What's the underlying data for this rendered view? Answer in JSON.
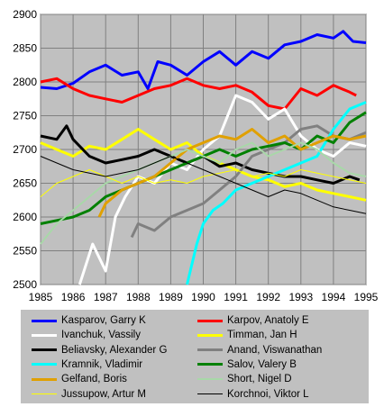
{
  "chart_data": {
    "type": "line",
    "title": "",
    "xlabel": "",
    "ylabel": "",
    "xlim": [
      1985,
      1995
    ],
    "ylim": [
      2500,
      2900
    ],
    "x_ticks": [
      "1985",
      "1986",
      "1987",
      "1988",
      "1989",
      "1990",
      "1991",
      "1992",
      "1993",
      "1994",
      "1995"
    ],
    "y_ticks": [
      "2900",
      "2850",
      "2800",
      "2750",
      "2700",
      "2650",
      "2600",
      "2550",
      "2500"
    ],
    "grid": true,
    "legend_position": "bottom",
    "series": [
      {
        "name": "Kasparov, Garry K",
        "color": "#0000ff",
        "width": 3,
        "x": [
          1985,
          1985.5,
          1986,
          1986.5,
          1987,
          1987.5,
          1988,
          1988.3,
          1988.6,
          1989,
          1989.5,
          1990,
          1990.5,
          1991,
          1991.5,
          1992,
          1992.5,
          1993,
          1993.5,
          1994,
          1994.3,
          1994.6,
          1995
        ],
        "y": [
          2792,
          2790,
          2798,
          2815,
          2825,
          2810,
          2815,
          2790,
          2830,
          2825,
          2810,
          2830,
          2845,
          2825,
          2845,
          2835,
          2855,
          2860,
          2870,
          2865,
          2875,
          2860,
          2858
        ]
      },
      {
        "name": "Karpov, Anatoly E",
        "color": "#ff0000",
        "width": 3,
        "x": [
          1985,
          1985.5,
          1986,
          1986.5,
          1987,
          1987.5,
          1988,
          1988.5,
          1989,
          1989.5,
          1990,
          1990.5,
          1991,
          1991.5,
          1992,
          1992.5,
          1993,
          1993.5,
          1994,
          1994.5,
          1994.7
        ],
        "y": [
          2800,
          2805,
          2790,
          2780,
          2775,
          2770,
          2780,
          2790,
          2795,
          2805,
          2795,
          2790,
          2795,
          2785,
          2765,
          2760,
          2790,
          2780,
          2795,
          2785,
          2780
        ]
      },
      {
        "name": "Ivanchuk, Vassily",
        "color": "#ffffff",
        "width": 3,
        "x": [
          1986.2,
          1986.6,
          1987,
          1987.3,
          1987.6,
          1988,
          1988.5,
          1989,
          1989.5,
          1990,
          1990.5,
          1991,
          1991.5,
          1992,
          1992.5,
          1993,
          1993.5,
          1994,
          1994.5,
          1995
        ],
        "y": [
          2500,
          2560,
          2520,
          2600,
          2630,
          2660,
          2650,
          2680,
          2670,
          2700,
          2720,
          2780,
          2770,
          2745,
          2760,
          2720,
          2700,
          2690,
          2710,
          2705
        ]
      },
      {
        "name": "Timman, Jan H",
        "color": "#ffff00",
        "width": 3,
        "x": [
          1985,
          1985.5,
          1986,
          1986.5,
          1987,
          1987.5,
          1988,
          1988.5,
          1989,
          1989.5,
          1990,
          1990.5,
          1991,
          1991.5,
          1992,
          1992.5,
          1993,
          1993.5,
          1994,
          1994.5,
          1995
        ],
        "y": [
          2710,
          2700,
          2690,
          2705,
          2700,
          2715,
          2730,
          2715,
          2700,
          2710,
          2690,
          2680,
          2670,
          2660,
          2655,
          2645,
          2650,
          2640,
          2635,
          2630,
          2625
        ]
      },
      {
        "name": "Beliavsky, Alexander G",
        "color": "#000000",
        "width": 3,
        "x": [
          1985,
          1985.5,
          1985.8,
          1986,
          1986.5,
          1987,
          1987.5,
          1988,
          1988.5,
          1989,
          1989.5,
          1990,
          1990.5,
          1991,
          1991.5,
          1992,
          1992.5,
          1993,
          1993.5,
          1994,
          1994.5,
          1994.8
        ],
        "y": [
          2720,
          2715,
          2735,
          2715,
          2690,
          2680,
          2685,
          2690,
          2700,
          2690,
          2680,
          2690,
          2675,
          2680,
          2670,
          2665,
          2660,
          2660,
          2655,
          2650,
          2660,
          2655
        ]
      },
      {
        "name": "Anand, Viswanathan",
        "color": "#808080",
        "width": 3,
        "x": [
          1987.8,
          1988,
          1988.5,
          1989,
          1989.5,
          1990,
          1990.5,
          1991,
          1991.5,
          1992,
          1992.5,
          1993,
          1993.5,
          1994,
          1994.5,
          1995
        ],
        "y": [
          2570,
          2590,
          2580,
          2600,
          2610,
          2620,
          2640,
          2660,
          2690,
          2700,
          2710,
          2730,
          2735,
          2720,
          2715,
          2725
        ]
      },
      {
        "name": "Kramnik, Vladimir",
        "color": "#00ffff",
        "width": 3,
        "x": [
          1989.5,
          1989.8,
          1990,
          1990.3,
          1990.6,
          1991,
          1991.5,
          1992,
          1992.5,
          1993,
          1993.5,
          1994,
          1994.5,
          1995
        ],
        "y": [
          2500,
          2560,
          2590,
          2610,
          2620,
          2640,
          2650,
          2660,
          2670,
          2680,
          2690,
          2730,
          2760,
          2770
        ]
      },
      {
        "name": "Salov, Valery B",
        "color": "#008000",
        "width": 3,
        "x": [
          1985,
          1985.5,
          1986,
          1986.5,
          1987,
          1987.5,
          1988,
          1988.5,
          1989,
          1989.5,
          1990,
          1990.5,
          1991,
          1991.5,
          1992,
          1992.5,
          1993,
          1993.5,
          1994,
          1994.5,
          1995
        ],
        "y": [
          2590,
          2595,
          2600,
          2610,
          2630,
          2640,
          2650,
          2660,
          2670,
          2680,
          2690,
          2700,
          2690,
          2700,
          2705,
          2710,
          2700,
          2720,
          2710,
          2740,
          2755
        ]
      },
      {
        "name": "Gelfand, Boris",
        "color": "#e0a000",
        "width": 3,
        "x": [
          1986.8,
          1987,
          1987.5,
          1988,
          1988.5,
          1989,
          1989.5,
          1990,
          1990.5,
          1991,
          1991.5,
          1992,
          1992.5,
          1993,
          1993.5,
          1994,
          1994.5,
          1995
        ],
        "y": [
          2600,
          2620,
          2640,
          2650,
          2660,
          2680,
          2700,
          2710,
          2720,
          2715,
          2730,
          2710,
          2720,
          2700,
          2710,
          2720,
          2715,
          2720
        ]
      },
      {
        "name": "Short, Nigel D",
        "color": "#a8d8a8",
        "width": 2,
        "x": [
          1985,
          1985.5,
          1986,
          1986.5,
          1987,
          1987.5,
          1988,
          1988.5,
          1989,
          1989.5,
          1990,
          1990.5,
          1991,
          1991.5,
          1992,
          1992.5,
          1993,
          1993.5,
          1994,
          1994.5,
          1995
        ],
        "y": [
          2560,
          2590,
          2610,
          2630,
          2650,
          2660,
          2670,
          2680,
          2690,
          2700,
          2690,
          2680,
          2700,
          2710,
          2690,
          2700,
          2710,
          2700,
          2680,
          2665,
          2660
        ]
      },
      {
        "name": "Jussupow, Artur M",
        "color": "#ffff00",
        "width": 1,
        "x": [
          1985,
          1985.5,
          1986,
          1986.5,
          1987,
          1987.5,
          1988,
          1988.5,
          1989,
          1989.5,
          1990,
          1990.5,
          1991,
          1991.5,
          1992,
          1992.5,
          1993,
          1993.5,
          1994,
          1994.5,
          1995
        ],
        "y": [
          2630,
          2650,
          2660,
          2670,
          2660,
          2650,
          2660,
          2650,
          2655,
          2650,
          2660,
          2665,
          2670,
          2660,
          2665,
          2660,
          2670,
          2665,
          2660,
          2655,
          2650
        ]
      },
      {
        "name": "Korchnoi, Viktor L",
        "color": "#000000",
        "width": 1,
        "x": [
          1985,
          1985.5,
          1986,
          1986.5,
          1987,
          1987.5,
          1988,
          1988.5,
          1989,
          1989.5,
          1990,
          1990.5,
          1991,
          1991.5,
          1992,
          1992.5,
          1993,
          1993.5,
          1994,
          1994.5,
          1995
        ],
        "y": [
          2690,
          2680,
          2670,
          2665,
          2660,
          2665,
          2670,
          2680,
          2690,
          2680,
          2670,
          2660,
          2650,
          2640,
          2630,
          2640,
          2635,
          2625,
          2615,
          2610,
          2605
        ]
      }
    ]
  }
}
